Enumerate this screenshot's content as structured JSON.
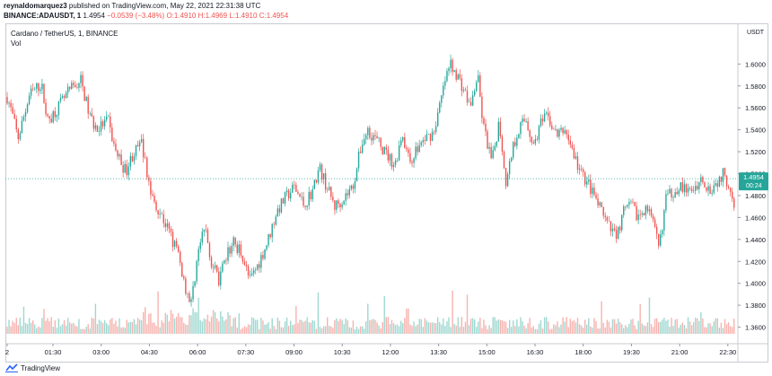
{
  "header": {
    "publisher_line": "reynaldomarquez3 published on TradingView.com, May 22, 2021 22:31:38 UTC",
    "publisher_user": "reynaldomarquez3",
    "publisher_rest": " published on TradingView.com, May 22, 2021 22:31:38 UTC",
    "symbol_line": "BINANCE:ADAUSDT, 1",
    "price": "1.4954",
    "change": "−0.0539 (−3.48%)",
    "open": "O:1.4910",
    "high": "H:1.4969",
    "low": "L:1.4910",
    "close": "C:1.4954"
  },
  "legend": {
    "title": "Cardano / TetherUS, 1, BINANCE",
    "vol_label": "Vol"
  },
  "footer": {
    "brand": "TradingView"
  },
  "colors": {
    "up": "#26a69a",
    "down": "#ef5350",
    "up_vol": "#9fd8d1",
    "down_vol": "#f7b2ae",
    "price_badge": "#26a69a"
  },
  "chart_data": {
    "type": "candlestick",
    "y_axis_unit": "USDT",
    "y_ticks": [
      1.6,
      1.58,
      1.56,
      1.54,
      1.52,
      1.5,
      1.48,
      1.46,
      1.44,
      1.42,
      1.4,
      1.38,
      1.36
    ],
    "y_tick_labels": [
      "1.6000",
      "1.5800",
      "1.5600",
      "1.5400",
      "1.5200",
      "1.5000",
      "1.4800",
      "1.4600",
      "1.4400",
      "1.4200",
      "1.4000",
      "1.3800",
      "1.3600"
    ],
    "ylim": [
      1.349,
      1.624
    ],
    "x_tick_labels": [
      "2",
      "01:30",
      "03:00",
      "04:30",
      "06:00",
      "07:30",
      "09:00",
      "10:30",
      "12:00",
      "13:30",
      "15:00",
      "16:30",
      "18:00",
      "19:30",
      "21:00",
      "22:30"
    ],
    "last_price": "1.4954",
    "countdown": "00:24",
    "close_path": [
      [
        0,
        1.57
      ],
      [
        5,
        1.556
      ],
      [
        12,
        1.532
      ],
      [
        25,
        1.572
      ],
      [
        38,
        1.582
      ],
      [
        45,
        1.548
      ],
      [
        58,
        1.562
      ],
      [
        70,
        1.576
      ],
      [
        82,
        1.585
      ],
      [
        92,
        1.552
      ],
      [
        100,
        1.54
      ],
      [
        112,
        1.549
      ],
      [
        120,
        1.522
      ],
      [
        132,
        1.502
      ],
      [
        140,
        1.518
      ],
      [
        150,
        1.527
      ],
      [
        160,
        1.482
      ],
      [
        170,
        1.465
      ],
      [
        180,
        1.448
      ],
      [
        190,
        1.428
      ],
      [
        198,
        1.398
      ],
      [
        205,
        1.382
      ],
      [
        212,
        1.425
      ],
      [
        220,
        1.452
      ],
      [
        228,
        1.418
      ],
      [
        236,
        1.402
      ],
      [
        245,
        1.426
      ],
      [
        252,
        1.438
      ],
      [
        262,
        1.426
      ],
      [
        270,
        1.402
      ],
      [
        280,
        1.418
      ],
      [
        290,
        1.438
      ],
      [
        300,
        1.465
      ],
      [
        310,
        1.478
      ],
      [
        320,
        1.488
      ],
      [
        330,
        1.472
      ],
      [
        340,
        1.484
      ],
      [
        348,
        1.505
      ],
      [
        356,
        1.488
      ],
      [
        365,
        1.47
      ],
      [
        375,
        1.478
      ],
      [
        385,
        1.488
      ],
      [
        395,
        1.528
      ],
      [
        402,
        1.54
      ],
      [
        412,
        1.53
      ],
      [
        422,
        1.518
      ],
      [
        432,
        1.508
      ],
      [
        440,
        1.538
      ],
      [
        448,
        1.51
      ],
      [
        456,
        1.522
      ],
      [
        466,
        1.532
      ],
      [
        475,
        1.538
      ],
      [
        482,
        1.562
      ],
      [
        488,
        1.585
      ],
      [
        494,
        1.6
      ],
      [
        500,
        1.592
      ],
      [
        508,
        1.578
      ],
      [
        516,
        1.56
      ],
      [
        524,
        1.59
      ],
      [
        530,
        1.545
      ],
      [
        540,
        1.51
      ],
      [
        548,
        1.548
      ],
      [
        556,
        1.49
      ],
      [
        562,
        1.52
      ],
      [
        570,
        1.542
      ],
      [
        578,
        1.55
      ],
      [
        586,
        1.525
      ],
      [
        594,
        1.545
      ],
      [
        602,
        1.552
      ],
      [
        612,
        1.535
      ],
      [
        622,
        1.54
      ],
      [
        630,
        1.52
      ],
      [
        638,
        1.502
      ],
      [
        648,
        1.49
      ],
      [
        656,
        1.475
      ],
      [
        664,
        1.462
      ],
      [
        672,
        1.448
      ],
      [
        680,
        1.446
      ],
      [
        688,
        1.468
      ],
      [
        696,
        1.47
      ],
      [
        704,
        1.46
      ],
      [
        712,
        1.472
      ],
      [
        720,
        1.452
      ],
      [
        726,
        1.432
      ],
      [
        734,
        1.478
      ],
      [
        742,
        1.484
      ],
      [
        750,
        1.49
      ],
      [
        758,
        1.482
      ],
      [
        766,
        1.488
      ],
      [
        774,
        1.496
      ],
      [
        782,
        1.486
      ],
      [
        790,
        1.492
      ],
      [
        798,
        1.5
      ],
      [
        806,
        1.486
      ],
      [
        812,
        1.468
      ],
      [
        818,
        1.495
      ]
    ]
  }
}
